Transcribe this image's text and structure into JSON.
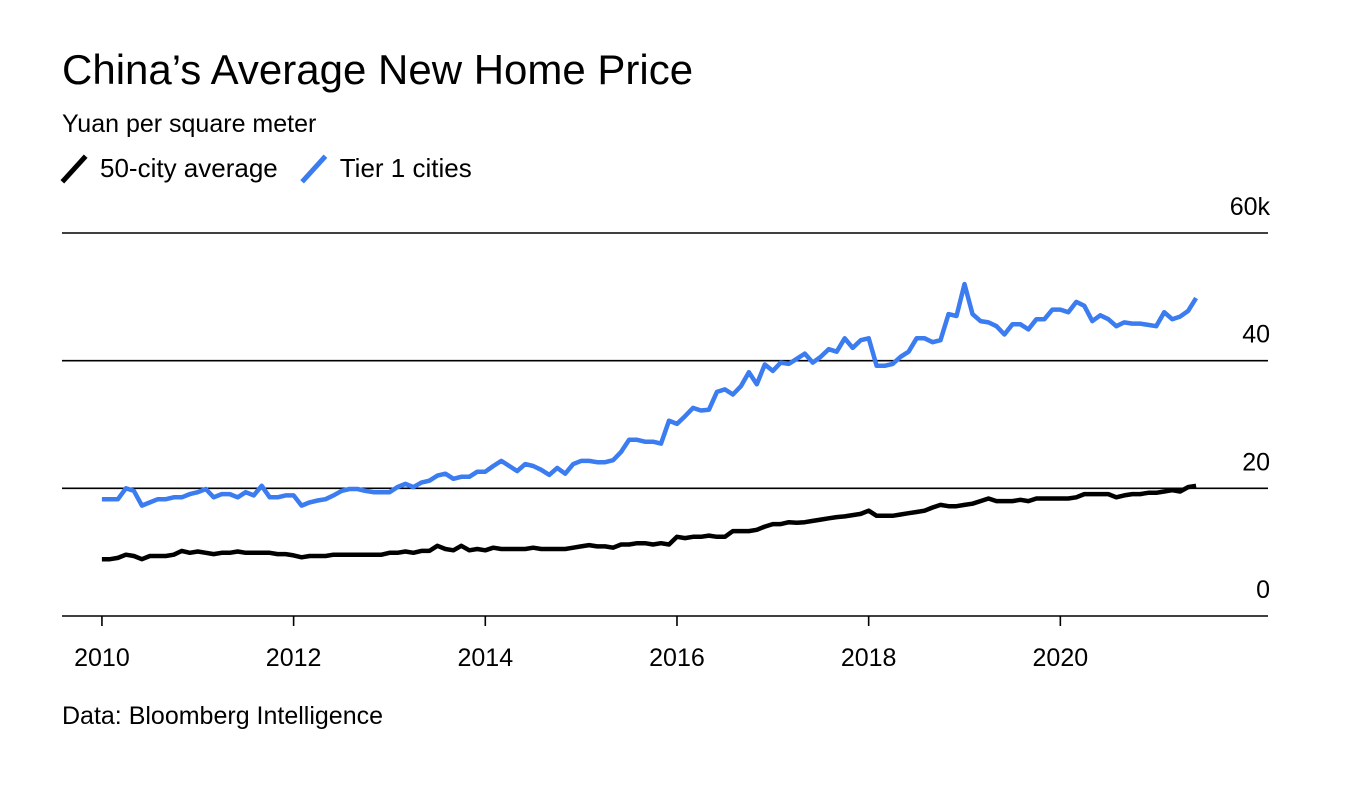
{
  "chart_data": {
    "type": "line",
    "title": "China’s Average New Home Price",
    "subtitle": "Yuan per square meter",
    "source": "Data: Bloomberg Intelligence",
    "x": [
      "2010-01",
      "2010-02",
      "2010-03",
      "2010-04",
      "2010-05",
      "2010-06",
      "2010-07",
      "2010-08",
      "2010-09",
      "2010-10",
      "2010-11",
      "2010-12",
      "2011-01",
      "2011-02",
      "2011-03",
      "2011-04",
      "2011-05",
      "2011-06",
      "2011-07",
      "2011-08",
      "2011-09",
      "2011-10",
      "2011-11",
      "2011-12",
      "2012-01",
      "2012-02",
      "2012-03",
      "2012-04",
      "2012-05",
      "2012-06",
      "2012-07",
      "2012-08",
      "2012-09",
      "2012-10",
      "2012-11",
      "2012-12",
      "2013-01",
      "2013-02",
      "2013-03",
      "2013-04",
      "2013-05",
      "2013-06",
      "2013-07",
      "2013-08",
      "2013-09",
      "2013-10",
      "2013-11",
      "2013-12",
      "2014-01",
      "2014-02",
      "2014-03",
      "2014-04",
      "2014-05",
      "2014-06",
      "2014-07",
      "2014-08",
      "2014-09",
      "2014-10",
      "2014-11",
      "2014-12",
      "2015-01",
      "2015-02",
      "2015-03",
      "2015-04",
      "2015-05",
      "2015-06",
      "2015-07",
      "2015-08",
      "2015-09",
      "2015-10",
      "2015-11",
      "2015-12",
      "2016-01",
      "2016-02",
      "2016-03",
      "2016-04",
      "2016-05",
      "2016-06",
      "2016-07",
      "2016-08",
      "2016-09",
      "2016-10",
      "2016-11",
      "2016-12",
      "2017-01",
      "2017-02",
      "2017-03",
      "2017-04",
      "2017-05",
      "2017-06",
      "2017-07",
      "2017-08",
      "2017-09",
      "2017-10",
      "2017-11",
      "2017-12",
      "2018-01",
      "2018-02",
      "2018-03",
      "2018-04",
      "2018-05",
      "2018-06",
      "2018-07",
      "2018-08",
      "2018-09",
      "2018-10",
      "2018-11",
      "2018-12",
      "2019-01",
      "2019-02",
      "2019-03",
      "2019-04",
      "2019-05",
      "2019-06",
      "2019-07",
      "2019-08",
      "2019-09",
      "2019-10",
      "2019-11",
      "2019-12",
      "2020-01",
      "2020-02",
      "2020-03",
      "2020-04",
      "2020-05",
      "2020-06",
      "2020-07",
      "2020-08",
      "2020-09",
      "2020-10",
      "2020-11",
      "2020-12",
      "2021-01",
      "2021-02",
      "2021-03",
      "2021-04",
      "2021-05",
      "2021-06"
    ],
    "series": [
      {
        "name": "50-city average",
        "color": "#000000",
        "values": [
          8.9,
          8.9,
          9.1,
          9.6,
          9.4,
          8.9,
          9.4,
          9.4,
          9.4,
          9.6,
          10.2,
          9.9,
          10.1,
          9.9,
          9.7,
          9.9,
          9.9,
          10.1,
          9.9,
          9.9,
          9.9,
          9.9,
          9.7,
          9.7,
          9.5,
          9.2,
          9.4,
          9.4,
          9.4,
          9.6,
          9.6,
          9.6,
          9.6,
          9.6,
          9.6,
          9.6,
          9.9,
          9.9,
          10.1,
          9.9,
          10.2,
          10.2,
          11.0,
          10.5,
          10.3,
          11.0,
          10.3,
          10.5,
          10.3,
          10.7,
          10.5,
          10.5,
          10.5,
          10.5,
          10.7,
          10.5,
          10.5,
          10.5,
          10.5,
          10.7,
          10.9,
          11.1,
          10.9,
          10.9,
          10.7,
          11.2,
          11.2,
          11.4,
          11.4,
          11.2,
          11.4,
          11.2,
          12.4,
          12.2,
          12.4,
          12.4,
          12.6,
          12.4,
          12.4,
          13.3,
          13.3,
          13.3,
          13.5,
          14.0,
          14.4,
          14.4,
          14.7,
          14.6,
          14.7,
          14.9,
          15.1,
          15.3,
          15.5,
          15.6,
          15.8,
          16.0,
          16.5,
          15.7,
          15.7,
          15.7,
          15.9,
          16.1,
          16.3,
          16.5,
          17.0,
          17.4,
          17.2,
          17.2,
          17.4,
          17.6,
          18.0,
          18.4,
          18.0,
          18.0,
          18.0,
          18.2,
          18.0,
          18.4,
          18.4,
          18.4,
          18.4,
          18.4,
          18.6,
          19.1,
          19.1,
          19.1,
          19.1,
          18.6,
          18.9,
          19.1,
          19.1,
          19.3,
          19.3,
          19.5,
          19.7,
          19.5,
          20.2,
          20.4
        ]
      },
      {
        "name": "Tier 1 cities",
        "color": "#3b7cf0",
        "values": [
          18.3,
          18.3,
          18.3,
          20.0,
          19.6,
          17.3,
          17.8,
          18.3,
          18.3,
          18.6,
          18.6,
          19.1,
          19.4,
          19.9,
          18.6,
          19.1,
          19.1,
          18.6,
          19.4,
          18.9,
          20.4,
          18.6,
          18.6,
          18.9,
          18.9,
          17.3,
          17.8,
          18.1,
          18.3,
          18.9,
          19.6,
          19.9,
          19.9,
          19.6,
          19.4,
          19.4,
          19.4,
          20.2,
          20.7,
          20.2,
          20.9,
          21.2,
          22.0,
          22.3,
          21.5,
          21.8,
          21.8,
          22.6,
          22.6,
          23.5,
          24.3,
          23.5,
          22.7,
          23.8,
          23.5,
          22.9,
          22.1,
          23.2,
          22.3,
          23.8,
          24.3,
          24.3,
          24.1,
          24.1,
          24.4,
          25.7,
          27.6,
          27.6,
          27.3,
          27.3,
          27.0,
          30.6,
          30.1,
          31.3,
          32.6,
          32.2,
          32.3,
          35.1,
          35.5,
          34.7,
          36.0,
          38.2,
          36.3,
          39.4,
          38.4,
          39.7,
          39.5,
          40.3,
          41.1,
          39.7,
          40.6,
          41.8,
          41.4,
          43.5,
          42.0,
          43.2,
          43.5,
          39.2,
          39.2,
          39.5,
          40.6,
          41.4,
          43.5,
          43.5,
          42.9,
          43.2,
          47.3,
          47.0,
          52.0,
          47.3,
          46.2,
          46.0,
          45.4,
          44.1,
          45.7,
          45.7,
          44.9,
          46.5,
          46.5,
          48.0,
          48.0,
          47.6,
          49.2,
          48.6,
          46.2,
          47.1,
          46.5,
          45.4,
          46.0,
          45.8,
          45.8,
          45.6,
          45.4,
          47.6,
          46.5,
          46.9,
          47.8,
          49.8
        ]
      }
    ],
    "xlim": [
      "2009-08",
      "2022-03"
    ],
    "xticks": [
      "2010",
      "2012",
      "2014",
      "2016",
      "2018",
      "2020"
    ],
    "ylim": [
      0,
      60
    ],
    "yticks": [
      0,
      20,
      40,
      {
        "value": 60,
        "label": "60k"
      }
    ],
    "grid": true
  }
}
